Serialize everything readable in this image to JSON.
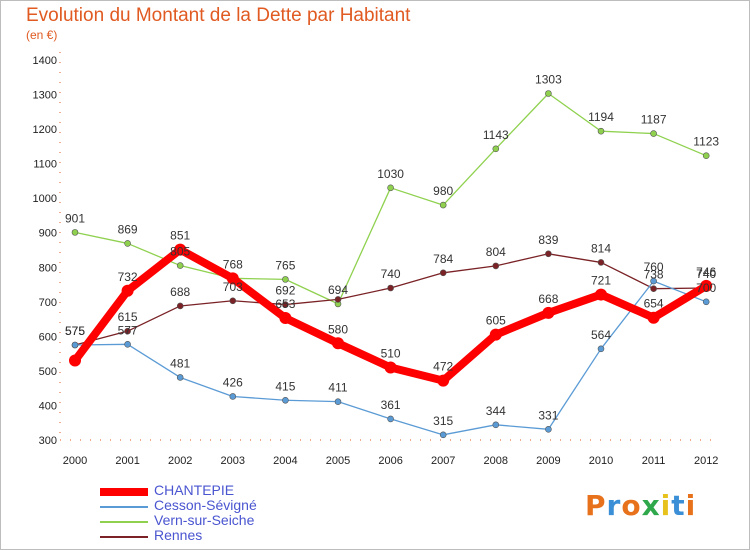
{
  "colors": {
    "title": "#e05a22",
    "legend_text": "#4a55d0",
    "CHANTEPIE": "#ff0000",
    "Cesson-Sévigné": "#5b9bd5",
    "Vern-sur-Seiche": "#8fd14f",
    "Rennes": "#7a2226"
  },
  "logo": {
    "text": "Proxiti",
    "colors": [
      "#e8721c",
      "#3a8fd6",
      "#e8721c",
      "#2ea84a",
      "#e8c21c",
      "#3a8fd6",
      "#e8721c"
    ]
  },
  "chart_data": {
    "type": "line",
    "title": "Evolution du Montant de la Dette par Habitant",
    "subtitle": "(en €)",
    "xlabel": "",
    "ylabel": "",
    "x": [
      "2000",
      "2001",
      "2002",
      "2003",
      "2004",
      "2005",
      "2006",
      "2007",
      "2008",
      "2009",
      "2010",
      "2011",
      "2012"
    ],
    "ylim": [
      300,
      1400
    ],
    "yticks": [
      300,
      400,
      500,
      600,
      700,
      800,
      900,
      1000,
      1100,
      1200,
      1300,
      1400
    ],
    "grid": false,
    "legend_position": "bottom-left",
    "series": [
      {
        "name": "Vern-sur-Seiche",
        "values": [
          901,
          869,
          805,
          768,
          765,
          694,
          1030,
          980,
          1143,
          1303,
          1194,
          1187,
          1123
        ],
        "labels": [
          "901",
          "869",
          "805",
          "768",
          "765",
          "694",
          "1030",
          "980",
          "1143",
          "1303",
          "1194",
          "1187",
          "1123"
        ]
      },
      {
        "name": "Rennes",
        "values": [
          575,
          615,
          688,
          703,
          692,
          707,
          740,
          784,
          804,
          839,
          814,
          738,
          740
        ],
        "labels": [
          "575",
          "615",
          "688",
          "703",
          "692",
          "",
          "740",
          "784",
          "804",
          "839",
          "814",
          "738",
          "740"
        ]
      },
      {
        "name": "Cesson-Sévigné",
        "values": [
          575,
          577,
          481,
          426,
          415,
          411,
          361,
          315,
          344,
          331,
          564,
          760,
          700
        ],
        "labels": [
          "575",
          "577",
          "481",
          "426",
          "415",
          "411",
          "361",
          "315",
          "344",
          "331",
          "564",
          "760",
          "700"
        ]
      },
      {
        "name": "CHANTEPIE",
        "values": [
          530,
          732,
          851,
          768,
          653,
          580,
          510,
          472,
          605,
          668,
          721,
          654,
          746
        ],
        "labels": [
          "",
          "732",
          "851",
          "",
          "653",
          "580",
          "510",
          "472",
          "605",
          "668",
          "721",
          "654",
          "746"
        ]
      }
    ]
  }
}
